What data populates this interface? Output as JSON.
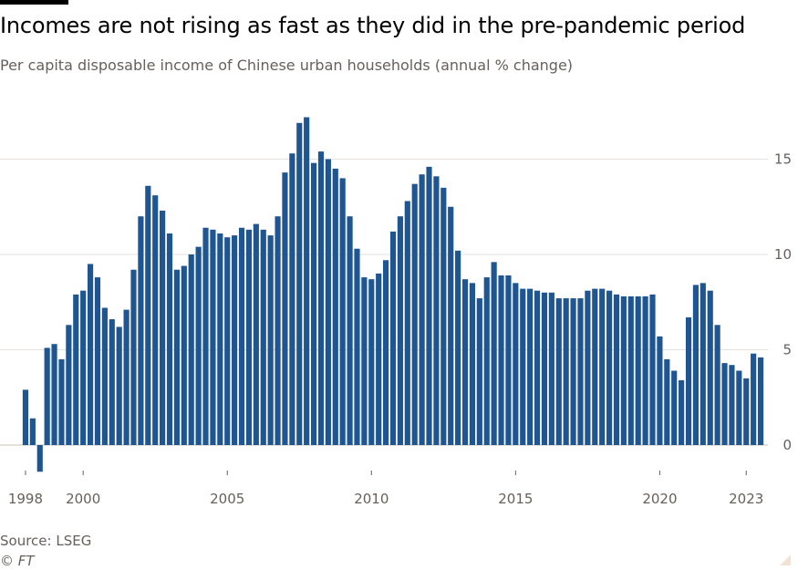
{
  "title": "Incomes are not rising as fast as they did in the pre-pandemic period",
  "subtitle": "Per capita disposable income of Chinese urban households (annual % change)",
  "source": "Source: LSEG",
  "credit": "© FT",
  "colors": {
    "bar": "#1f5591",
    "grid": "#e6e1dc",
    "text": "#66605c",
    "title": "#000000"
  },
  "chart_data": {
    "type": "bar",
    "title": "Incomes are not rising as fast as they did in the pre-pandemic period",
    "ylabel": "Per capita disposable income of Chinese urban households (annual % change)",
    "xlabel": "",
    "ylim": [
      -1.4,
      18
    ],
    "yticks": [
      0,
      5,
      10,
      15
    ],
    "xticks": [
      {
        "label": "1998",
        "at": 1998
      },
      {
        "label": "2000",
        "at": 2000
      },
      {
        "label": "2005",
        "at": 2005
      },
      {
        "label": "2010",
        "at": 2010
      },
      {
        "label": "2015",
        "at": 2015
      },
      {
        "label": "2020",
        "at": 2020
      },
      {
        "label": "2023",
        "at": 2023
      }
    ],
    "x_start": 1998,
    "period_step": 0.25,
    "series": [
      {
        "name": "Per capita disposable income, annual % change",
        "values": [
          2.9,
          1.4,
          -1.4,
          5.1,
          5.3,
          4.5,
          6.3,
          7.9,
          8.1,
          9.5,
          8.8,
          7.2,
          6.6,
          6.2,
          7.1,
          9.2,
          12.0,
          13.6,
          13.1,
          12.3,
          11.1,
          9.2,
          9.4,
          10.0,
          10.4,
          11.4,
          11.3,
          11.1,
          10.9,
          11.0,
          11.4,
          11.3,
          11.6,
          11.3,
          11.0,
          12.0,
          14.3,
          15.3,
          16.9,
          17.2,
          14.8,
          15.4,
          15.0,
          14.5,
          14.0,
          12.0,
          10.3,
          8.8,
          8.7,
          9.0,
          9.7,
          11.2,
          12.0,
          12.8,
          13.7,
          14.2,
          14.6,
          14.1,
          13.5,
          12.5,
          10.2,
          8.7,
          8.5,
          7.7,
          8.8,
          9.6,
          8.9,
          8.9,
          8.5,
          8.2,
          8.2,
          8.1,
          8.0,
          8.0,
          7.7,
          7.7,
          7.7,
          7.7,
          8.1,
          8.2,
          8.2,
          8.1,
          7.9,
          7.8,
          7.8,
          7.8,
          7.8,
          7.9,
          5.7,
          4.5,
          3.9,
          3.4,
          6.7,
          8.4,
          8.5,
          8.1,
          6.3,
          4.3,
          4.2,
          3.9,
          3.5,
          4.8,
          4.6
        ]
      }
    ]
  }
}
